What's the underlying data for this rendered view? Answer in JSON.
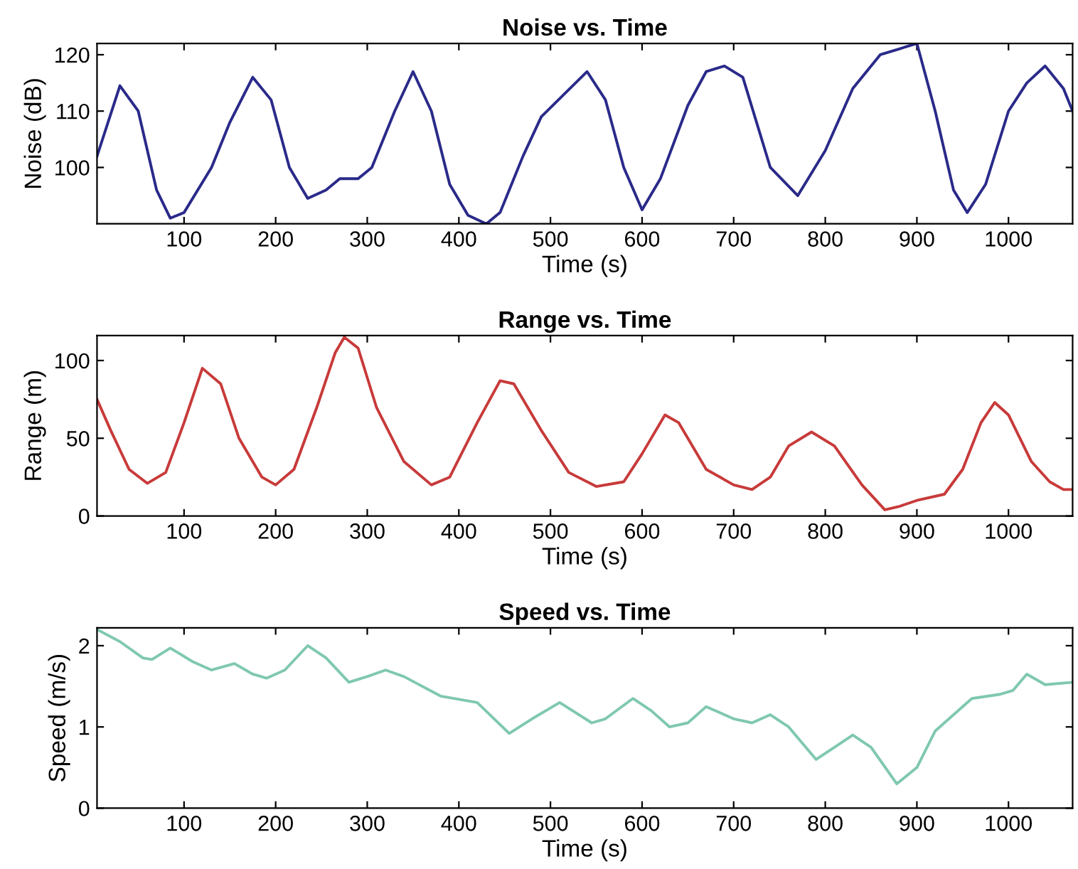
{
  "chart_data": [
    {
      "type": "line",
      "title": "Noise vs. Time",
      "xlabel": "Time (s)",
      "ylabel": "Noise (dB)",
      "xlim": [
        5,
        1070
      ],
      "xticks": [
        100,
        200,
        300,
        400,
        500,
        600,
        700,
        800,
        900,
        1000
      ],
      "ylim": [
        90,
        122
      ],
      "yticks": [
        100,
        110,
        120
      ],
      "grid": false,
      "legend": false,
      "series": [
        {
          "color": "#2a2a8a",
          "x": [
            5,
            30,
            50,
            70,
            85,
            100,
            130,
            150,
            175,
            195,
            215,
            235,
            255,
            270,
            290,
            305,
            330,
            350,
            370,
            390,
            410,
            430,
            445,
            470,
            490,
            515,
            540,
            560,
            580,
            600,
            620,
            650,
            670,
            690,
            710,
            740,
            770,
            800,
            830,
            860,
            880,
            900,
            920,
            940,
            955,
            975,
            1000,
            1020,
            1040,
            1060,
            1070
          ],
          "values": [
            102,
            114.5,
            110,
            96,
            91,
            92,
            100,
            108,
            116,
            112,
            100,
            94.5,
            96,
            98,
            98,
            100,
            110,
            117,
            110,
            97,
            91.5,
            90,
            92,
            102,
            109,
            113,
            117,
            112,
            100,
            92.5,
            98,
            111,
            117,
            118,
            116,
            100,
            95,
            103,
            114,
            120,
            121,
            122,
            110,
            96,
            92,
            97,
            110,
            115,
            118,
            114,
            110
          ]
        }
      ]
    },
    {
      "type": "line",
      "title": "Range vs. Time",
      "xlabel": "Time (s)",
      "ylabel": "Range (m)",
      "xlim": [
        5,
        1070
      ],
      "xticks": [
        100,
        200,
        300,
        400,
        500,
        600,
        700,
        800,
        900,
        1000
      ],
      "ylim": [
        0,
        116
      ],
      "yticks": [
        0,
        50,
        100
      ],
      "grid": false,
      "legend": false,
      "series": [
        {
          "color": "#c83a3a",
          "x": [
            5,
            20,
            40,
            60,
            80,
            100,
            120,
            140,
            160,
            185,
            200,
            220,
            245,
            265,
            275,
            290,
            310,
            340,
            370,
            390,
            420,
            445,
            460,
            490,
            520,
            550,
            580,
            600,
            625,
            640,
            670,
            700,
            720,
            740,
            760,
            785,
            810,
            840,
            865,
            880,
            900,
            930,
            950,
            970,
            985,
            1000,
            1025,
            1045,
            1060,
            1070
          ],
          "values": [
            75,
            55,
            30,
            21,
            28,
            60,
            95,
            85,
            50,
            25,
            20,
            30,
            70,
            105,
            115,
            108,
            70,
            35,
            20,
            25,
            60,
            87,
            85,
            55,
            28,
            19,
            22,
            40,
            65,
            60,
            30,
            20,
            17,
            25,
            45,
            54,
            45,
            20,
            4,
            6,
            10,
            14,
            30,
            60,
            73,
            65,
            35,
            22,
            17,
            17
          ]
        }
      ]
    },
    {
      "type": "line",
      "title": "Speed vs. Time",
      "xlabel": "Time (s)",
      "ylabel": "Speed (m/s)",
      "xlim": [
        5,
        1070
      ],
      "xticks": [
        100,
        200,
        300,
        400,
        500,
        600,
        700,
        800,
        900,
        1000
      ],
      "ylim": [
        0,
        2.22
      ],
      "yticks": [
        0,
        1,
        2
      ],
      "grid": false,
      "legend": false,
      "series": [
        {
          "color": "#7fc8b0",
          "x": [
            5,
            30,
            55,
            65,
            85,
            110,
            130,
            155,
            175,
            190,
            210,
            235,
            255,
            280,
            300,
            320,
            340,
            380,
            420,
            455,
            480,
            510,
            545,
            560,
            590,
            610,
            630,
            650,
            670,
            700,
            720,
            740,
            760,
            790,
            810,
            830,
            850,
            878,
            900,
            920,
            960,
            990,
            1005,
            1020,
            1040,
            1070
          ],
          "values": [
            2.2,
            2.05,
            1.85,
            1.83,
            1.97,
            1.8,
            1.7,
            1.78,
            1.65,
            1.6,
            1.7,
            2.0,
            1.85,
            1.55,
            1.62,
            1.7,
            1.62,
            1.38,
            1.3,
            0.92,
            1.1,
            1.3,
            1.05,
            1.1,
            1.35,
            1.2,
            1.0,
            1.05,
            1.25,
            1.1,
            1.05,
            1.15,
            1.0,
            0.6,
            0.75,
            0.9,
            0.75,
            0.3,
            0.5,
            0.95,
            1.35,
            1.4,
            1.45,
            1.65,
            1.52,
            1.55
          ]
        }
      ]
    }
  ]
}
